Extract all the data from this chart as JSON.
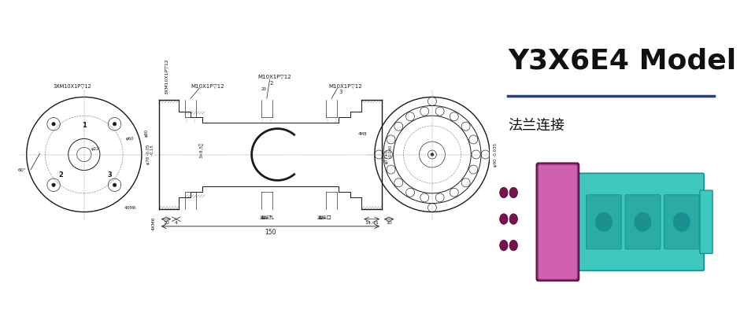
{
  "title": "Y3X6E4 Model",
  "subtitle": "法兰连接",
  "title_color": "#111111",
  "subtitle_color": "#111111",
  "divider_color": "#1f3d8c",
  "bg_color": "#ffffff",
  "line_color": "#1a1a1a",
  "title_fontsize": 26,
  "subtitle_fontsize": 13,
  "anno_fontsize": 5.5,
  "dim_fontsize": 5.5,
  "teal_color": "#3EC8C0",
  "teal_dark": "#1a9090",
  "pink_color": "#D060B0",
  "pink_dark": "#903080",
  "pink_face": "#C050A0"
}
